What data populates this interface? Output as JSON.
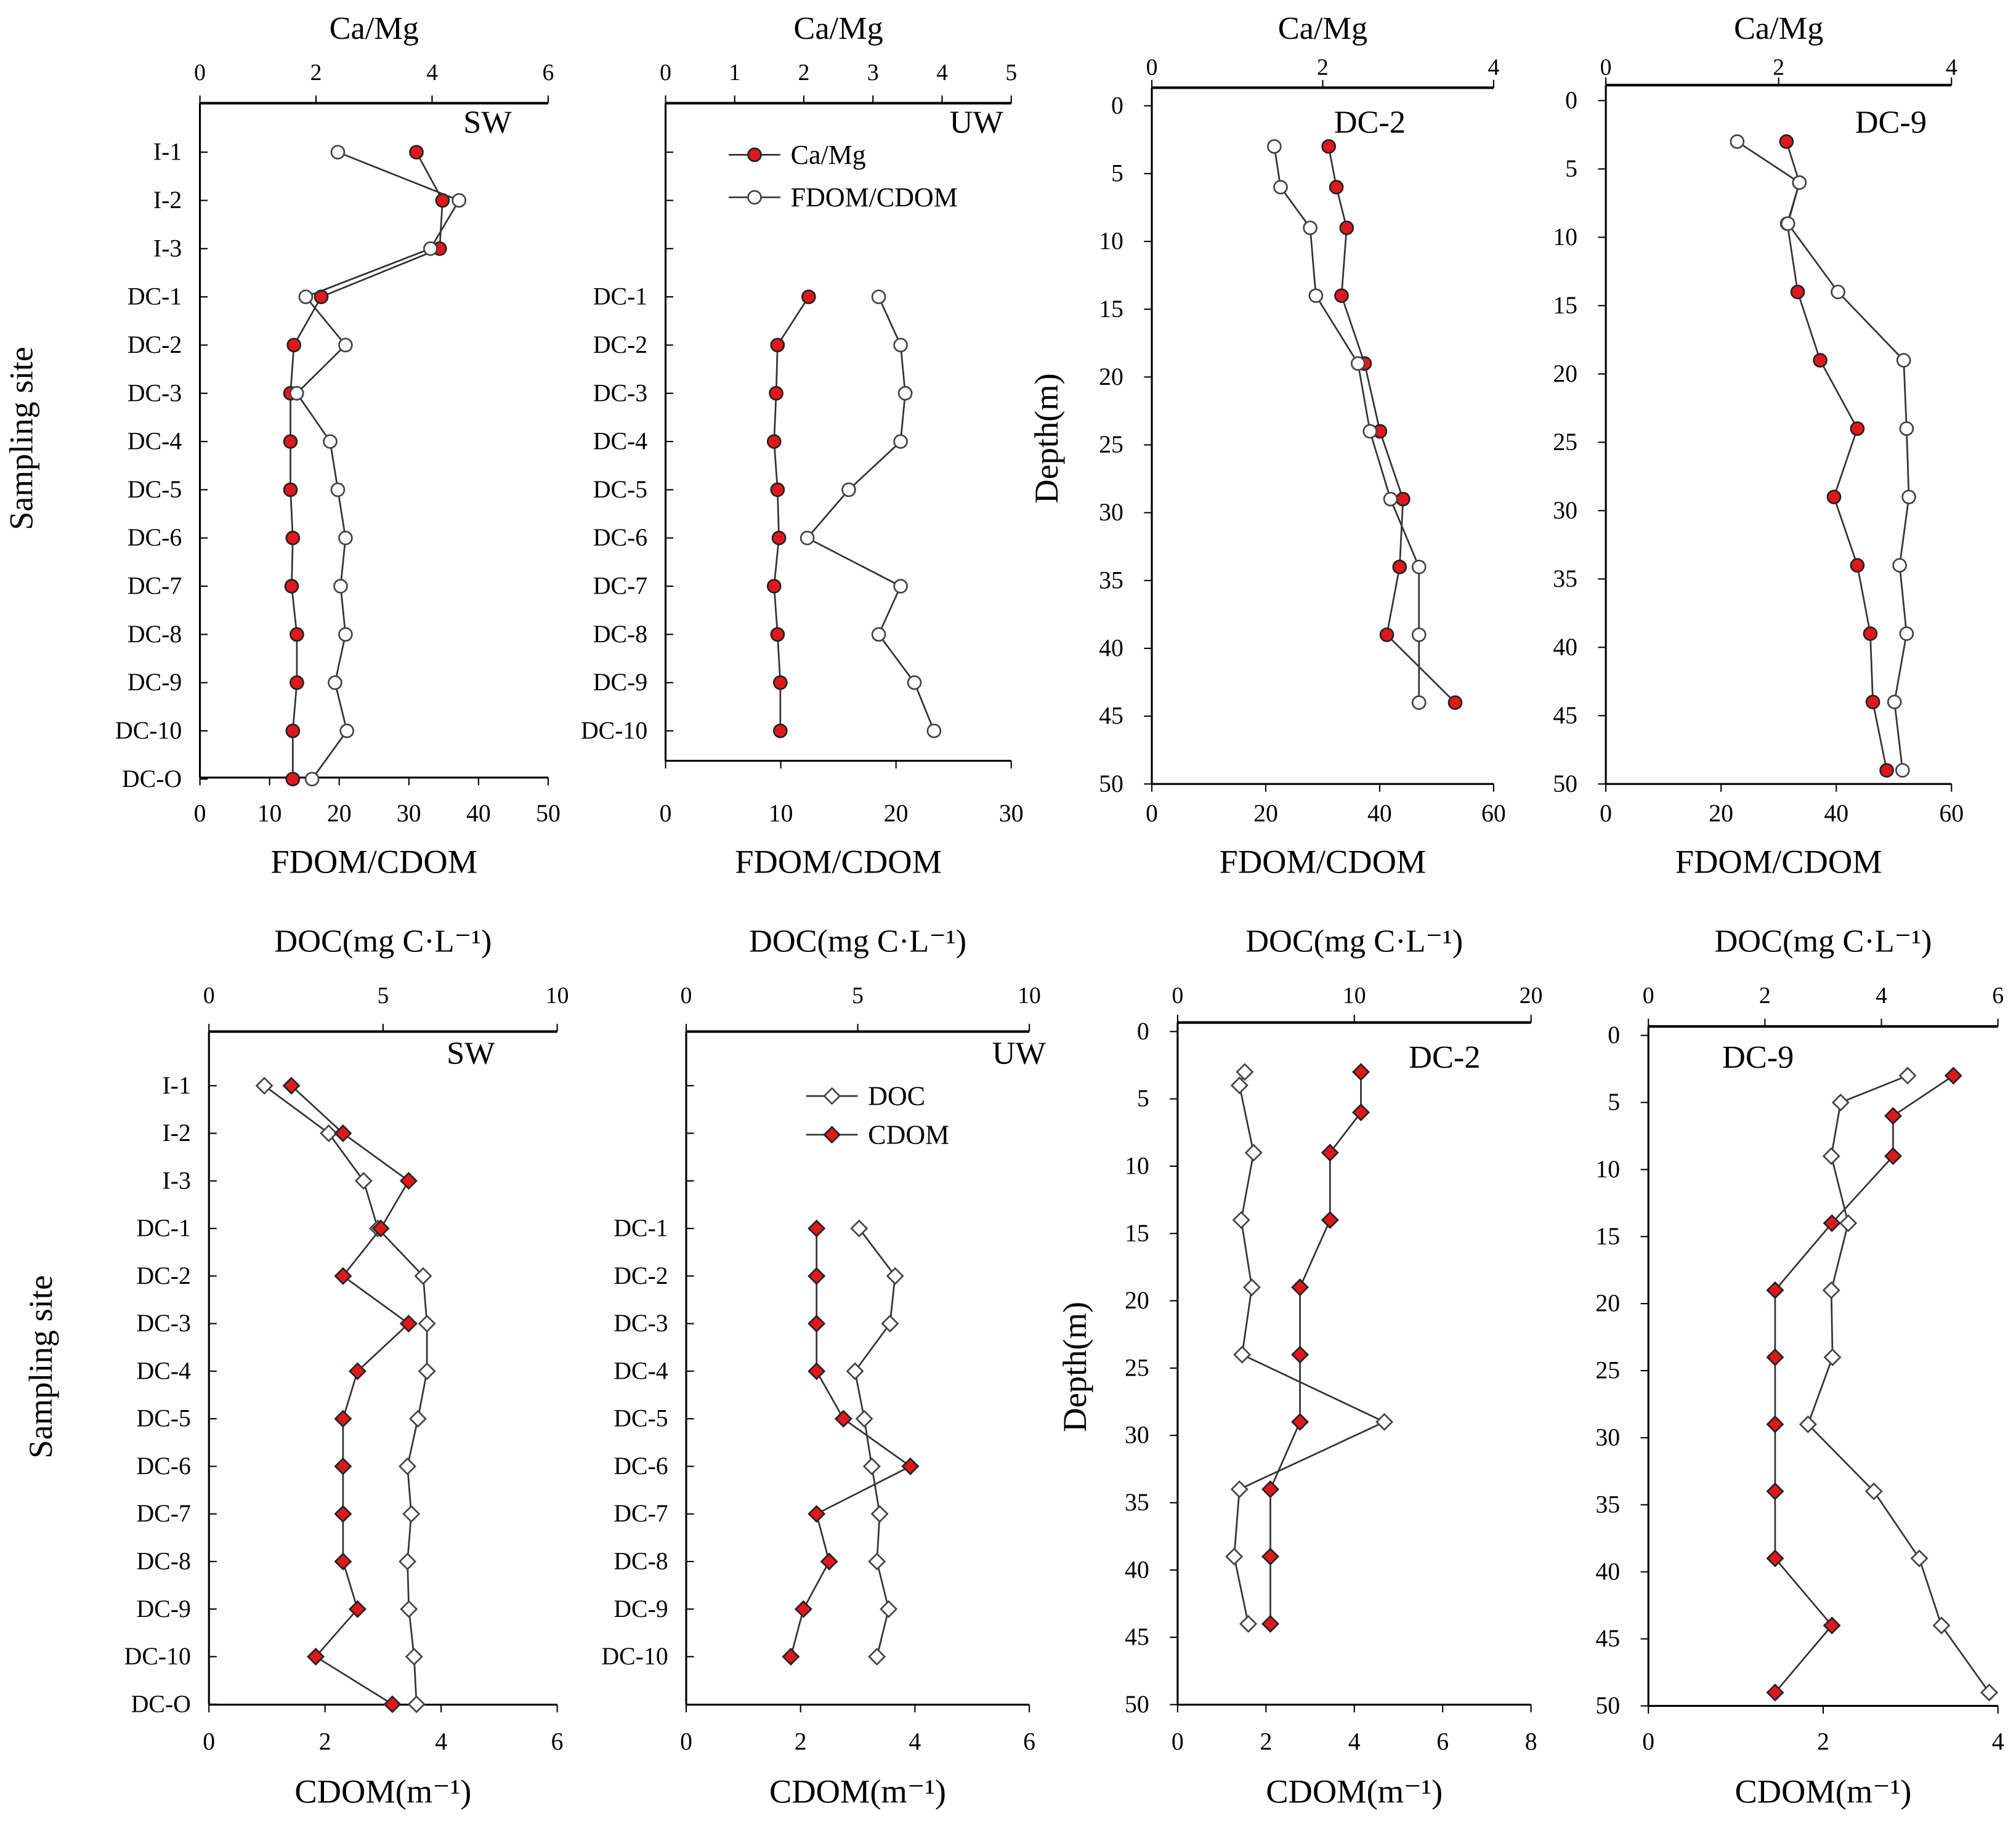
{
  "colors": {
    "ca_mg": "#e0181b",
    "cdom": "#e0181b",
    "open_marker": "#ffffff",
    "line": "#333333"
  },
  "chart_data": [
    {
      "type": "line",
      "panel_label": "SW",
      "top_axis": {
        "label": "Ca/Mg",
        "range": [
          0,
          6
        ],
        "ticks": [
          "0",
          "2",
          "4",
          "6"
        ]
      },
      "bottom_axis": {
        "label": "FDOM/CDOM",
        "range": [
          0,
          50
        ],
        "ticks": [
          "0",
          "10",
          "20",
          "30",
          "40",
          "50"
        ]
      },
      "y_axis": {
        "label": "Sampling site",
        "categories": [
          "I-1",
          "I-2",
          "I-3",
          "DC-1",
          "DC-2",
          "DC-3",
          "DC-4",
          "DC-5",
          "DC-6",
          "DC-7",
          "DC-8",
          "DC-9",
          "DC-10",
          "DC-O"
        ]
      },
      "series": [
        {
          "name": "Ca/Mg",
          "axis": "top",
          "marker": "filled-circle",
          "values": [
            3.73,
            4.18,
            4.13,
            2.09,
            1.62,
            1.56,
            1.56,
            1.56,
            1.6,
            1.58,
            1.67,
            1.67,
            1.6,
            1.6
          ]
        },
        {
          "name": "FDOM/CDOM",
          "axis": "bottom",
          "marker": "open-circle",
          "values": [
            19.8,
            37.2,
            33.1,
            15.2,
            20.9,
            13.9,
            18.7,
            19.8,
            20.9,
            20.2,
            20.9,
            19.4,
            21.1,
            16.1
          ]
        }
      ]
    },
    {
      "type": "line",
      "panel_label": "UW",
      "top_axis": {
        "label": "Ca/Mg",
        "range": [
          0,
          5
        ],
        "ticks": [
          "0",
          "1",
          "2",
          "3",
          "4",
          "5"
        ]
      },
      "bottom_axis": {
        "label": "FDOM/CDOM",
        "range": [
          0,
          30
        ],
        "ticks": [
          "0",
          "10",
          "20",
          "30"
        ]
      },
      "y_axis": {
        "label": "",
        "categories": [
          "",
          "",
          "",
          "DC-1",
          "DC-2",
          "DC-3",
          "DC-4",
          "DC-5",
          "DC-6",
          "DC-7",
          "DC-8",
          "DC-9",
          "DC-10"
        ]
      },
      "legend": [
        "Ca/Mg",
        "FDOM/CDOM"
      ],
      "series": [
        {
          "name": "Ca/Mg",
          "axis": "top",
          "marker": "filled-circle",
          "values": [
            null,
            null,
            null,
            2.07,
            1.62,
            1.6,
            1.57,
            1.62,
            1.64,
            1.57,
            1.62,
            1.66,
            1.66
          ]
        },
        {
          "name": "FDOM/CDOM",
          "axis": "bottom",
          "marker": "open-circle",
          "values": [
            null,
            null,
            null,
            18.5,
            20.4,
            20.8,
            20.4,
            15.9,
            12.3,
            20.4,
            18.5,
            21.6,
            23.3
          ]
        }
      ]
    },
    {
      "type": "line",
      "panel_label": "DC-2",
      "top_axis": {
        "label": "Ca/Mg",
        "range": [
          0,
          4
        ],
        "ticks": [
          "0",
          "2",
          "4"
        ]
      },
      "bottom_axis": {
        "label": "FDOM/CDOM",
        "range": [
          0,
          60
        ],
        "ticks": [
          "0",
          "20",
          "40",
          "60"
        ]
      },
      "y_axis": {
        "label": "Depth(m)",
        "range": [
          0,
          50
        ],
        "ticks": [
          "0",
          "5",
          "10",
          "15",
          "20",
          "25",
          "30",
          "35",
          "40",
          "45",
          "50"
        ]
      },
      "series": [
        {
          "name": "Ca/Mg",
          "axis": "top",
          "marker": "filled-circle",
          "depths": [
            3,
            6,
            9,
            14,
            19,
            24,
            29,
            34,
            39,
            44
          ],
          "values": [
            2.07,
            2.16,
            2.28,
            2.22,
            2.49,
            2.67,
            2.94,
            2.9,
            2.75,
            3.55
          ]
        },
        {
          "name": "FDOM/CDOM",
          "axis": "bottom",
          "marker": "open-circle",
          "depths": [
            3,
            6,
            9,
            14,
            19,
            24,
            29,
            34,
            39,
            44
          ],
          "values": [
            21.5,
            22.6,
            27.8,
            28.8,
            36.2,
            38.3,
            41.9,
            46.9,
            46.9,
            46.9
          ]
        }
      ]
    },
    {
      "type": "line",
      "panel_label": "DC-9",
      "top_axis": {
        "label": "Ca/Mg",
        "range": [
          0,
          4
        ],
        "ticks": [
          "0",
          "2",
          "4"
        ]
      },
      "bottom_axis": {
        "label": "FDOM/CDOM",
        "range": [
          0,
          60
        ],
        "ticks": [
          "0",
          "20",
          "40",
          "60"
        ]
      },
      "y_axis": {
        "label": "",
        "range": [
          0,
          50
        ],
        "ticks": [
          "0",
          "5",
          "10",
          "15",
          "20",
          "25",
          "30",
          "35",
          "40",
          "45",
          "50"
        ]
      },
      "series": [
        {
          "name": "Ca/Mg",
          "axis": "top",
          "marker": "filled-circle",
          "depths": [
            3,
            6,
            9,
            14,
            19,
            24,
            29,
            34,
            39,
            44,
            49
          ],
          "values": [
            2.09,
            2.24,
            2.1,
            2.22,
            2.48,
            2.91,
            2.64,
            2.91,
            3.06,
            3.09,
            3.25
          ]
        },
        {
          "name": "FDOM/CDOM",
          "axis": "bottom",
          "marker": "open-circle",
          "depths": [
            3,
            6,
            9,
            14,
            19,
            24,
            29,
            34,
            39,
            44,
            49
          ],
          "values": [
            22.8,
            33.6,
            31.6,
            40.3,
            51.7,
            52.2,
            52.6,
            51.0,
            52.2,
            50.1,
            51.5
          ]
        }
      ]
    },
    {
      "type": "line",
      "panel_label": "SW",
      "top_axis": {
        "label": "DOC(mg C·L⁻¹)",
        "range": [
          0,
          10
        ],
        "ticks": [
          "0",
          "5",
          "10"
        ]
      },
      "bottom_axis": {
        "label": "CDOM(m⁻¹)",
        "range": [
          0,
          6
        ],
        "ticks": [
          "0",
          "2",
          "4",
          "6"
        ]
      },
      "y_axis": {
        "label": "Sampling site",
        "categories": [
          "I-1",
          "I-2",
          "I-3",
          "DC-1",
          "DC-2",
          "DC-3",
          "DC-4",
          "DC-5",
          "DC-6",
          "DC-7",
          "DC-8",
          "DC-9",
          "DC-10",
          "DC-O"
        ]
      },
      "series": [
        {
          "name": "DOC",
          "axis": "top",
          "marker": "open-diamond",
          "values": [
            1.59,
            3.44,
            4.44,
            4.85,
            6.15,
            6.26,
            6.26,
            6.0,
            5.7,
            5.81,
            5.7,
            5.74,
            5.89,
            5.96
          ]
        },
        {
          "name": "CDOM",
          "axis": "bottom",
          "marker": "filled-diamond",
          "values": [
            1.42,
            2.31,
            3.44,
            2.96,
            2.31,
            3.44,
            2.56,
            2.31,
            2.31,
            2.31,
            2.31,
            2.56,
            1.84,
            3.16
          ]
        }
      ]
    },
    {
      "type": "line",
      "panel_label": "UW",
      "top_axis": {
        "label": "DOC(mg C·L⁻¹)",
        "range": [
          0,
          10
        ],
        "ticks": [
          "0",
          "5",
          "10"
        ]
      },
      "bottom_axis": {
        "label": "CDOM(m⁻¹)",
        "range": [
          0,
          6
        ],
        "ticks": [
          "0",
          "2",
          "4",
          "6"
        ]
      },
      "y_axis": {
        "label": "",
        "categories": [
          "",
          "",
          "",
          "DC-1",
          "DC-2",
          "DC-3",
          "DC-4",
          "DC-5",
          "DC-6",
          "DC-7",
          "DC-8",
          "DC-9",
          "DC-10"
        ]
      },
      "legend": [
        "DOC",
        "CDOM"
      ],
      "series": [
        {
          "name": "DOC",
          "axis": "top",
          "marker": "open-diamond",
          "values": [
            null,
            null,
            null,
            5.04,
            6.09,
            5.94,
            4.92,
            5.19,
            5.41,
            5.64,
            5.56,
            5.9,
            5.56
          ]
        },
        {
          "name": "CDOM",
          "axis": "bottom",
          "marker": "filled-diamond",
          "values": [
            null,
            null,
            null,
            2.28,
            2.28,
            2.28,
            2.28,
            2.75,
            3.92,
            2.28,
            2.5,
            2.05,
            1.83
          ]
        }
      ]
    },
    {
      "type": "line",
      "panel_label": "DC-2",
      "top_axis": {
        "label": "DOC(mg C·L⁻¹)",
        "range": [
          0,
          20
        ],
        "ticks": [
          "0",
          "10",
          "20"
        ]
      },
      "bottom_axis": {
        "label": "CDOM(m⁻¹)",
        "range": [
          0,
          8
        ],
        "ticks": [
          "0",
          "2",
          "4",
          "6",
          "8"
        ]
      },
      "y_axis": {
        "label": "Depth(m)",
        "range": [
          0,
          50
        ],
        "ticks": [
          "0",
          "5",
          "10",
          "15",
          "20",
          "25",
          "30",
          "35",
          "40",
          "45",
          "50"
        ]
      },
      "series": [
        {
          "name": "DOC",
          "axis": "top",
          "marker": "open-diamond",
          "depths": [
            3,
            4,
            9,
            14,
            19,
            24,
            29,
            34,
            39,
            44
          ],
          "values": [
            3.8,
            3.5,
            4.3,
            3.6,
            4.2,
            3.65,
            11.7,
            3.5,
            3.2,
            4.0
          ]
        },
        {
          "name": "CDOM",
          "axis": "bottom",
          "marker": "filled-diamond",
          "depths": [
            3,
            6,
            9,
            14,
            19,
            24,
            29,
            34,
            39,
            44
          ],
          "values": [
            4.15,
            4.15,
            3.45,
            3.45,
            2.77,
            2.77,
            2.77,
            2.1,
            2.1,
            2.1
          ]
        }
      ]
    },
    {
      "type": "line",
      "panel_label": "DC-9",
      "top_axis": {
        "label": "DOC(mg C·L⁻¹)",
        "range": [
          0,
          6
        ],
        "ticks": [
          "0",
          "2",
          "4",
          "6"
        ]
      },
      "bottom_axis": {
        "label": "CDOM(m⁻¹)",
        "range": [
          0,
          4
        ],
        "ticks": [
          "0",
          "2",
          "4"
        ]
      },
      "y_axis": {
        "label": "",
        "range": [
          0,
          50
        ],
        "ticks": [
          "0",
          "5",
          "10",
          "15",
          "20",
          "25",
          "30",
          "35",
          "40",
          "45",
          "50"
        ]
      },
      "series": [
        {
          "name": "DOC",
          "axis": "top",
          "marker": "open-diamond",
          "depths": [
            3,
            5,
            9,
            14,
            19,
            24,
            29,
            34,
            39,
            44,
            49
          ],
          "values": [
            4.45,
            3.3,
            3.14,
            3.43,
            3.14,
            3.16,
            2.74,
            3.87,
            4.65,
            5.03,
            5.85
          ]
        },
        {
          "name": "CDOM",
          "axis": "bottom",
          "marker": "filled-diamond",
          "depths": [
            3,
            6,
            9,
            14,
            19,
            24,
            29,
            34,
            39,
            44,
            49
          ],
          "values": [
            3.49,
            2.8,
            2.8,
            2.1,
            1.45,
            1.45,
            1.45,
            1.45,
            1.45,
            2.1,
            1.45
          ]
        }
      ]
    }
  ]
}
